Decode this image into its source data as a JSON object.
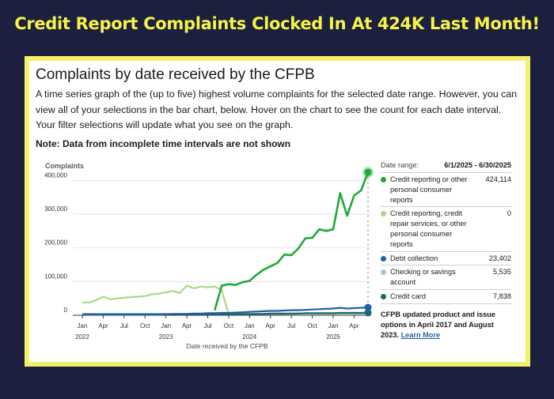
{
  "banner": "Credit Report Complaints Clocked In At 424K Last Month!",
  "title": "Complaints by date received by the CFPB",
  "description": "A time series graph of the (up to five) highest volume complaints for the selected date range. However, you can view all of your selections in the bar chart, below. Hover on the chart to see the count for each date interval. Your filter selections will update what you see on the graph.",
  "note": "Note:  Data from incomplete time intervals are not shown",
  "legend": {
    "date_range_label": "Date range:",
    "date_range_value": "6/1/2025 - 6/30/2025",
    "items": [
      {
        "name": "Credit reporting or other personal consumer reports",
        "value": "424,114",
        "color": "#20a839"
      },
      {
        "name": "Credit reporting, credit repair services, or other personal consumer reports",
        "value": "0",
        "color": "#a8d98a"
      },
      {
        "name": "Debt collection",
        "value": "23,402",
        "color": "#1f5fad"
      },
      {
        "name": "Checking or savings account",
        "value": "5,535",
        "color": "#9ec8e8"
      },
      {
        "name": "Credit card",
        "value": "7,838",
        "color": "#1d6b5c"
      }
    ],
    "footnote": "CFPB updated product and issue options in April 2017 and August 2023.",
    "link": "Learn More"
  },
  "chart_data": {
    "type": "line",
    "ylabel": "Complaints",
    "xlabel": "Date received by the CFPB",
    "ylim": [
      0,
      450000
    ],
    "yticks": [
      0,
      100000,
      200000,
      300000,
      400000
    ],
    "ytick_labels": [
      "0",
      "100,000",
      "200,000",
      "300,000",
      "400,000"
    ],
    "xtick_labels": [
      {
        "m": 0,
        "l1": "Jan",
        "l2": "2022"
      },
      {
        "m": 3,
        "l1": "Apr",
        "l2": ""
      },
      {
        "m": 6,
        "l1": "Jul",
        "l2": ""
      },
      {
        "m": 9,
        "l1": "Oct",
        "l2": ""
      },
      {
        "m": 12,
        "l1": "Jan",
        "l2": "2023"
      },
      {
        "m": 15,
        "l1": "Apr",
        "l2": ""
      },
      {
        "m": 18,
        "l1": "Jul",
        "l2": ""
      },
      {
        "m": 21,
        "l1": "Oct",
        "l2": ""
      },
      {
        "m": 24,
        "l1": "Jan",
        "l2": "2024"
      },
      {
        "m": 27,
        "l1": "Apr",
        "l2": ""
      },
      {
        "m": 30,
        "l1": "Jul",
        "l2": ""
      },
      {
        "m": 33,
        "l1": "Oct",
        "l2": ""
      },
      {
        "m": 36,
        "l1": "Jan",
        "l2": "2025"
      },
      {
        "m": 39,
        "l1": "Apr",
        "l2": ""
      }
    ],
    "x_months_total": 42,
    "series": [
      {
        "name": "Credit reporting, credit repair services, or other personal consumer reports",
        "color": "#a8d98a",
        "values": [
          38000,
          38000,
          45000,
          55000,
          48000,
          50000,
          52000,
          54000,
          55000,
          57000,
          62000,
          64000,
          68000,
          72000,
          66000,
          88000,
          80000,
          85000,
          83000,
          85000,
          75000,
          2000,
          null,
          null,
          null,
          null,
          null,
          null,
          null,
          null,
          null,
          null,
          null,
          null,
          null,
          null,
          null,
          null,
          null,
          null,
          null,
          null
        ]
      },
      {
        "name": "Credit reporting or other personal consumer reports",
        "color": "#20a839",
        "values": [
          null,
          null,
          null,
          null,
          null,
          null,
          null,
          null,
          null,
          null,
          null,
          null,
          null,
          null,
          null,
          null,
          null,
          null,
          null,
          15000,
          88000,
          92000,
          90000,
          98000,
          102000,
          120000,
          135000,
          145000,
          155000,
          180000,
          178000,
          198000,
          228000,
          230000,
          255000,
          250000,
          255000,
          362000,
          295000,
          355000,
          370000,
          424114
        ]
      },
      {
        "name": "Debt collection",
        "color": "#1f5fad",
        "values": [
          2000,
          2000,
          2000,
          2000,
          2000,
          2000,
          2000,
          2000,
          2000,
          2000,
          2000,
          2000,
          3000,
          4000,
          4000,
          4000,
          5000,
          5000,
          6000,
          6000,
          7000,
          7000,
          8000,
          9000,
          10000,
          11000,
          12000,
          13000,
          13000,
          14000,
          15000,
          15000,
          16000,
          17000,
          18000,
          19000,
          20000,
          22000,
          20000,
          21000,
          22000,
          23402
        ]
      },
      {
        "name": "Checking or savings account",
        "color": "#9ec8e8",
        "values": [
          4000,
          4000,
          4000,
          4000,
          4000,
          4000,
          4000,
          4000,
          4000,
          4000,
          4000,
          4000,
          4000,
          4000,
          4000,
          4000,
          4000,
          4000,
          4000,
          4000,
          4000,
          4000,
          4000,
          4000,
          4000,
          4000,
          4000,
          4000,
          4000,
          4000,
          5000,
          5000,
          5000,
          5000,
          5000,
          5000,
          5000,
          5000,
          5000,
          5000,
          5000,
          5535
        ]
      },
      {
        "name": "Credit card",
        "color": "#1d6b5c",
        "values": [
          3000,
          3000,
          3000,
          3000,
          3000,
          3000,
          3000,
          3000,
          3000,
          3000,
          3000,
          3000,
          3000,
          3000,
          3000,
          3000,
          3000,
          3000,
          3000,
          3000,
          3000,
          3000,
          4000,
          4000,
          4000,
          4000,
          4000,
          5000,
          5000,
          5000,
          5000,
          5000,
          6000,
          6000,
          6000,
          6000,
          6000,
          7000,
          7000,
          7000,
          7000,
          7838
        ]
      }
    ]
  }
}
